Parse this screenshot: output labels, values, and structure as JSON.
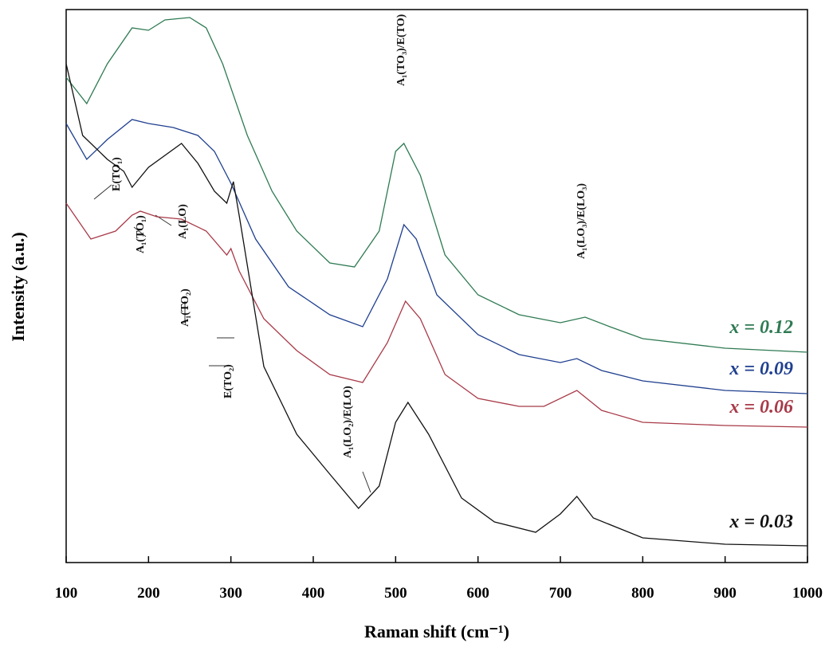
{
  "chart_data": {
    "type": "line",
    "x_label": "Raman shift (cm⁻¹)",
    "y_label": "Intensity (a.u.)",
    "xlim": [
      100,
      1000
    ],
    "xticks": [
      100,
      200,
      300,
      400,
      500,
      600,
      700,
      800,
      900,
      1000
    ],
    "ylim": [
      0,
      694
    ],
    "series": [
      {
        "name": "x = 0.12",
        "color": "#2e7a52",
        "x": [
          100,
          125,
          150,
          180,
          200,
          220,
          250,
          270,
          290,
          320,
          350,
          380,
          420,
          450,
          480,
          500,
          510,
          530,
          560,
          600,
          650,
          700,
          730,
          760,
          800,
          900,
          1000
        ],
        "values": [
          609,
          576,
          626,
          671,
          668,
          681,
          684,
          671,
          626,
          536,
          466,
          416,
          376,
          371,
          416,
          516,
          526,
          486,
          386,
          336,
          311,
          301,
          308,
          296,
          281,
          269,
          264
        ]
      },
      {
        "name": "x = 0.09",
        "color": "#1f3f8f",
        "x": [
          100,
          125,
          150,
          180,
          200,
          230,
          260,
          280,
          300,
          330,
          370,
          420,
          460,
          490,
          510,
          525,
          550,
          600,
          650,
          700,
          720,
          750,
          800,
          900,
          1000
        ],
        "values": [
          551,
          506,
          531,
          556,
          551,
          546,
          536,
          516,
          476,
          406,
          346,
          311,
          296,
          356,
          424,
          406,
          336,
          286,
          261,
          251,
          256,
          241,
          228,
          216,
          212
        ]
      },
      {
        "name": "x = 0.06",
        "color": "#a83a48",
        "x": [
          100,
          130,
          160,
          180,
          190,
          210,
          240,
          270,
          295,
          300,
          310,
          340,
          380,
          420,
          460,
          490,
          512,
          530,
          560,
          600,
          650,
          680,
          720,
          750,
          800,
          900,
          1000
        ],
        "values": [
          451,
          406,
          416,
          436,
          441,
          434,
          431,
          416,
          386,
          394,
          366,
          306,
          266,
          236,
          226,
          276,
          328,
          306,
          236,
          206,
          196,
          196,
          216,
          191,
          176,
          172,
          170
        ]
      },
      {
        "name": "x = 0.03",
        "color": "#111111",
        "x": [
          100,
          120,
          150,
          170,
          180,
          200,
          240,
          260,
          280,
          295,
          303,
          310,
          340,
          380,
          420,
          455,
          480,
          500,
          515,
          540,
          580,
          620,
          670,
          700,
          720,
          740,
          800,
          900,
          1000
        ],
        "values": [
          626,
          536,
          506,
          491,
          471,
          496,
          526,
          501,
          466,
          451,
          478,
          436,
          246,
          161,
          111,
          68,
          96,
          176,
          201,
          161,
          81,
          51,
          38,
          61,
          83,
          56,
          31,
          23,
          21
        ]
      }
    ],
    "annotations": [
      "E(TO₁)",
      "A₁(TO₁)",
      "A₁(LO)",
      "A₁(TO₂)",
      "E(TO₂)",
      "A₁(LO₂)/E(LO)",
      "A₁(TO₃)/E(TO)",
      "A₁(LO₃)/E(LO₃)"
    ]
  }
}
